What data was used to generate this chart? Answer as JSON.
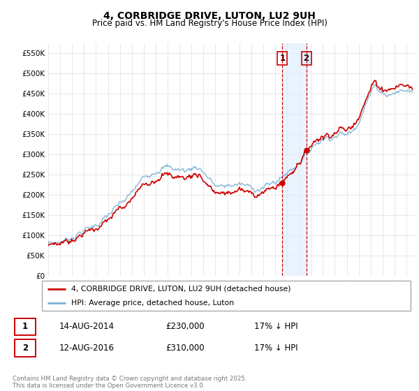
{
  "title": "4, CORBRIDGE DRIVE, LUTON, LU2 9UH",
  "subtitle": "Price paid vs. HM Land Registry's House Price Index (HPI)",
  "legend_label_red": "4, CORBRIDGE DRIVE, LUTON, LU2 9UH (detached house)",
  "legend_label_blue": "HPI: Average price, detached house, Luton",
  "footnote": "Contains HM Land Registry data © Crown copyright and database right 2025.\nThis data is licensed under the Open Government Licence v3.0.",
  "table": [
    {
      "label": "1",
      "date": "14-AUG-2014",
      "price": "£230,000",
      "note": "17% ↓ HPI"
    },
    {
      "label": "2",
      "date": "12-AUG-2016",
      "price": "£310,000",
      "note": "17% ↓ HPI"
    }
  ],
  "red_color": "#cc0000",
  "blue_color": "#7ab0d4",
  "shade_color": "#ddeeff",
  "vline_color": "#cc0000",
  "marker1_x": 2014.617,
  "marker1_y": 230000,
  "marker2_x": 2016.617,
  "marker2_y": 310000,
  "ylim": [
    0,
    575000
  ],
  "yticks": [
    0,
    50000,
    100000,
    150000,
    200000,
    250000,
    300000,
    350000,
    400000,
    450000,
    500000,
    550000
  ],
  "ytick_labels": [
    "£0",
    "£50K",
    "£100K",
    "£150K",
    "£200K",
    "£250K",
    "£300K",
    "£350K",
    "£400K",
    "£450K",
    "£500K",
    "£550K"
  ],
  "xlim_start": 1995.0,
  "xlim_end": 2025.7
}
